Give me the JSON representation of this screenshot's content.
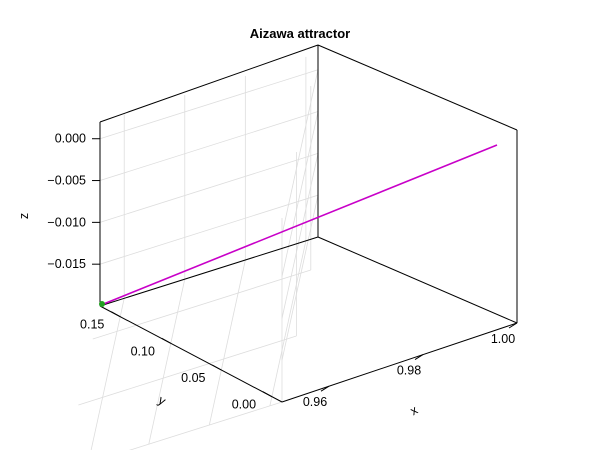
{
  "chart_data": {
    "type": "line",
    "projection": "3d",
    "title": "Aizawa attractor",
    "xlabel": "x",
    "ylabel": "y",
    "zlabel": "z",
    "x_ticks": [
      "0.96",
      "0.98",
      "1.00"
    ],
    "y_ticks": [
      "0.00",
      "0.05",
      "0.10",
      "0.15"
    ],
    "z_ticks": [
      "0.000",
      "−0.005",
      "−0.010",
      "−0.015"
    ],
    "xlim": [
      0.95,
      1.0
    ],
    "ylim": [
      -0.01,
      0.17
    ],
    "zlim": [
      -0.02,
      0.002
    ],
    "grid": true,
    "series": [
      {
        "color": "#c800c8",
        "x": [
          0.95,
          1.0
        ],
        "y": [
          0.165,
          0.0
        ],
        "z": [
          -0.0195,
          0.001
        ]
      }
    ],
    "start_marker": {
      "x": 0.95,
      "y": 0.165,
      "z": -0.0195,
      "color": "#22a022"
    }
  }
}
